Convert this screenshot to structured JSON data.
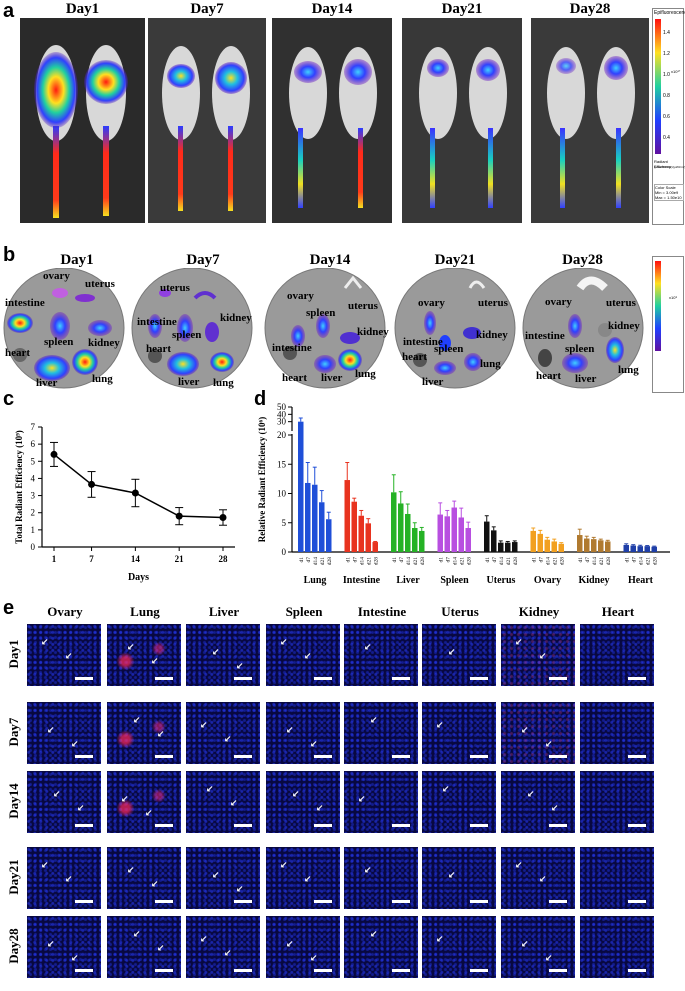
{
  "panel_labels": {
    "a": "a",
    "b": "b",
    "c": "c",
    "d": "d",
    "e": "e"
  },
  "panel_a": {
    "days": [
      "Day1",
      "Day7",
      "Day14",
      "Day21",
      "Day28"
    ],
    "colorbar_title": "Epifluorescence",
    "colorbar_ticks": [
      "1.4",
      "1.2",
      "1.0",
      "0.8",
      "0.6",
      "0.4"
    ],
    "colorbar_exp": "x10¹°",
    "colorbar_unit": "Radiant Efficiency",
    "colorbar_unit_sub": "(p/sec/cm²/sr)/(μW/cm²)",
    "colorscale_label": "Color Scale",
    "colorscale_min": "Min = 3.00e9",
    "colorscale_max": "Max = 1.50e10"
  },
  "panel_b": {
    "days": [
      "Day1",
      "Day7",
      "Day14",
      "Day21",
      "Day28"
    ],
    "organs": [
      "ovary",
      "uterus",
      "intestine",
      "spleen",
      "kidney",
      "heart",
      "liver",
      "lung"
    ],
    "colorbar_exp": "x10⁹"
  },
  "panel_c": {
    "chart_data": {
      "type": "line",
      "x": [
        1,
        7,
        14,
        21,
        28
      ],
      "y": [
        5.4,
        3.65,
        3.15,
        1.8,
        1.72
      ],
      "err": [
        0.7,
        0.75,
        0.8,
        0.5,
        0.45
      ],
      "xlabel": "Days",
      "ylabel": "Total Radiant Efficiency (10⁹)",
      "ylim": [
        0,
        7
      ],
      "yticks": [
        0,
        1,
        2,
        3,
        4,
        5,
        6,
        7
      ],
      "xticks": [
        1,
        7,
        14,
        21,
        28
      ]
    }
  },
  "panel_d": {
    "chart_data": {
      "type": "bar",
      "ylabel": "Relative Radiant Efficiency (10⁶)",
      "yticks_low": [
        0,
        5,
        10,
        15,
        20
      ],
      "yticks_high": [
        30,
        40,
        50
      ],
      "sub_labels": [
        "d1",
        "d7",
        "d14",
        "d21",
        "d28"
      ],
      "groups": [
        {
          "name": "Lung",
          "color": "#1f4fd8",
          "values": [
            30,
            11.8,
            11.5,
            8.5,
            5.6
          ],
          "err": [
            5,
            3.5,
            3,
            2,
            1.2
          ]
        },
        {
          "name": "Intestine",
          "color": "#e8331f",
          "values": [
            12.3,
            8.6,
            6.2,
            4.9,
            1.7
          ],
          "err": [
            3,
            0.6,
            0.9,
            0.8,
            0.1
          ]
        },
        {
          "name": "Liver",
          "color": "#25b225",
          "values": [
            10.2,
            8.3,
            6.5,
            4.1,
            3.6
          ],
          "err": [
            3,
            2,
            1.7,
            0.9,
            0.6
          ]
        },
        {
          "name": "Spleen",
          "color": "#b84fe0",
          "values": [
            6.4,
            6.1,
            7.6,
            5.9,
            4.1
          ],
          "err": [
            2,
            1,
            1.1,
            1.6,
            1
          ]
        },
        {
          "name": "Uterus",
          "color": "#111111",
          "values": [
            5.2,
            3.7,
            1.6,
            1.6,
            1.7
          ],
          "err": [
            1,
            0.6,
            0.3,
            0.2,
            0.2
          ]
        },
        {
          "name": "Ovary",
          "color": "#f2a020",
          "values": [
            3.6,
            3.1,
            2.1,
            1.8,
            1.4
          ],
          "err": [
            0.5,
            0.6,
            0.4,
            0.4,
            0.2
          ]
        },
        {
          "name": "Kidney",
          "color": "#b07a30",
          "values": [
            2.9,
            2.3,
            2.2,
            2.0,
            1.8
          ],
          "err": [
            1,
            0.4,
            0.3,
            0.2,
            0.2
          ]
        },
        {
          "name": "Heart",
          "color": "#1f3fa8",
          "values": [
            1.2,
            1.1,
            1.0,
            1.0,
            0.9
          ],
          "err": [
            0.2,
            0.15,
            0.15,
            0.1,
            0.1
          ]
        }
      ]
    }
  },
  "panel_e": {
    "columns": [
      "Ovary",
      "Lung",
      "Liver",
      "Spleen",
      "Intestine",
      "Uterus",
      "Kidney",
      "Heart"
    ],
    "rows": [
      "Day1",
      "Day7",
      "Day14",
      "Day21",
      "Day28"
    ]
  }
}
